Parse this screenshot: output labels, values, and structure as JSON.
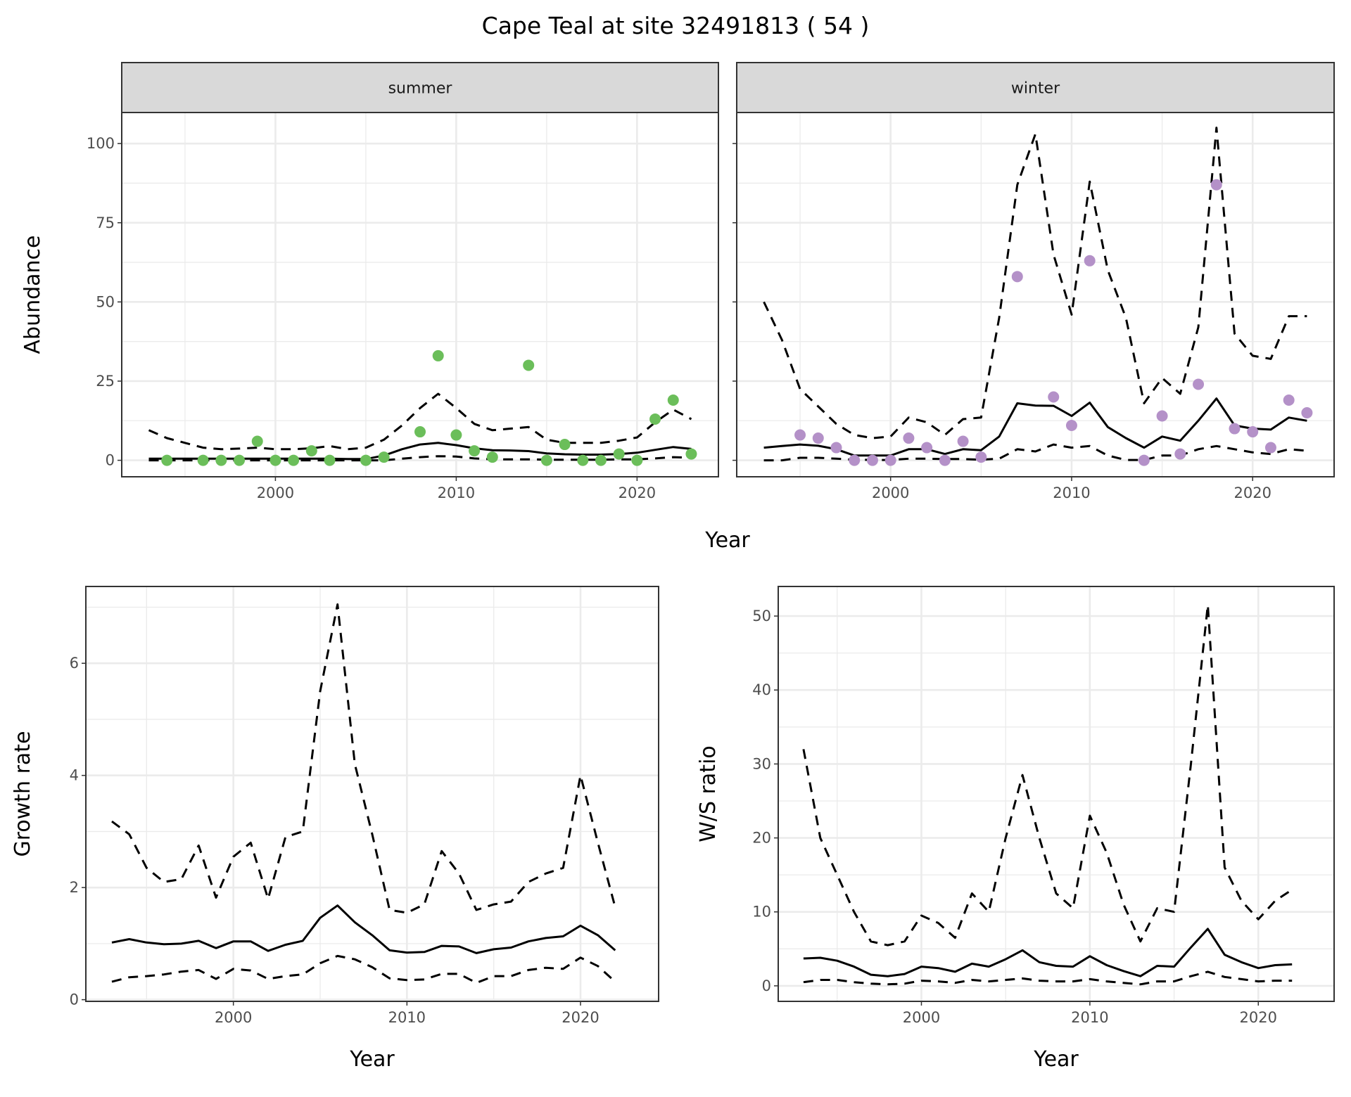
{
  "title": "Cape Teal at site 32491813 ( 54 )",
  "chart_data": [
    {
      "type": "line",
      "facet": "summer",
      "xlabel": "Year",
      "ylabel": "Abundance",
      "xlim": [
        1991.5,
        2024.5
      ],
      "ylim": [
        -5.2,
        109.8
      ],
      "x_ticks": [
        2000,
        2010,
        2020
      ],
      "y_ticks": [
        0,
        25,
        50,
        75,
        100
      ],
      "grid": true,
      "point_color": "#6BBE5A",
      "x": [
        1993,
        1994,
        1995,
        1996,
        1997,
        1998,
        1999,
        2000,
        2001,
        2002,
        2003,
        2004,
        2005,
        2006,
        2007,
        2008,
        2009,
        2010,
        2011,
        2012,
        2013,
        2014,
        2015,
        2016,
        2017,
        2018,
        2019,
        2020,
        2021,
        2022,
        2023
      ],
      "series": [
        {
          "style": "solid",
          "values": [
            0.5,
            0.5,
            0.5,
            0.5,
            0.5,
            0.5,
            0.5,
            0.5,
            0.5,
            0.5,
            0.5,
            0.4,
            0.4,
            1.5,
            3.5,
            5,
            5.5,
            4.8,
            3.8,
            3.2,
            3.1,
            2.9,
            2.2,
            1.9,
            1.8,
            1.8,
            2,
            2.4,
            3.3,
            4.2,
            3.6
          ]
        },
        {
          "style": "dashed",
          "values": [
            9.5,
            7,
            5.5,
            4,
            3.5,
            3.7,
            4,
            3.5,
            3.5,
            3.8,
            4.5,
            3.5,
            4,
            6.5,
            11,
            16.5,
            21,
            16.5,
            11.5,
            9.5,
            10,
            10.5,
            6.5,
            5.5,
            5.5,
            5.5,
            6.2,
            7.2,
            12,
            16,
            13
          ]
        },
        {
          "style": "dashed",
          "values": [
            0,
            0,
            0,
            0,
            0,
            0,
            0,
            0,
            0,
            0,
            0,
            0,
            0,
            0,
            0.5,
            1,
            1.3,
            1.2,
            0.6,
            0.3,
            0.3,
            0.3,
            0.2,
            0.2,
            0.2,
            0.2,
            0.3,
            0.3,
            0.6,
            1,
            0.8
          ]
        }
      ],
      "points": {
        "x": [
          1994,
          1996,
          1997,
          1998,
          1999,
          2000,
          2001,
          2002,
          2003,
          2005,
          2006,
          2008,
          2009,
          2010,
          2011,
          2012,
          2014,
          2015,
          2016,
          2017,
          2018,
          2019,
          2020,
          2021,
          2022,
          2023
        ],
        "y": [
          0,
          0,
          0,
          0,
          6,
          0,
          0,
          3,
          0,
          0,
          1,
          9,
          33,
          8,
          3,
          1,
          30,
          0,
          5,
          0,
          0,
          2,
          0,
          13,
          19,
          2
        ]
      }
    },
    {
      "type": "line",
      "facet": "winter",
      "xlabel": "Year",
      "ylabel": "Abundance",
      "xlim": [
        1991.5,
        2024.5
      ],
      "ylim": [
        -5.2,
        109.8
      ],
      "x_ticks": [
        2000,
        2010,
        2020
      ],
      "y_ticks": [
        0,
        25,
        50,
        75,
        100
      ],
      "grid": true,
      "point_color": "#B491C8",
      "x": [
        1993,
        1994,
        1995,
        1996,
        1997,
        1998,
        1999,
        2000,
        2001,
        2002,
        2003,
        2004,
        2005,
        2006,
        2007,
        2008,
        2009,
        2010,
        2011,
        2012,
        2013,
        2014,
        2015,
        2016,
        2017,
        2018,
        2019,
        2020,
        2021,
        2022,
        2023
      ],
      "series": [
        {
          "style": "solid",
          "values": [
            4,
            4.5,
            5,
            4.6,
            3.5,
            1.5,
            1.5,
            1.5,
            3.5,
            3.5,
            2,
            3.5,
            3.2,
            7.5,
            18,
            17.3,
            17.2,
            14,
            18.2,
            10.5,
            7,
            4,
            7.5,
            6.2,
            12.5,
            19.5,
            11,
            10,
            9.7,
            13.5,
            12.5
          ]
        },
        {
          "style": "dashed",
          "values": [
            50,
            38,
            22.5,
            17,
            11.5,
            8,
            7,
            7.5,
            13.5,
            12,
            8,
            13,
            13.5,
            45,
            87,
            103,
            65,
            46,
            88,
            60,
            45,
            18,
            26,
            21,
            42,
            105,
            40,
            33,
            32,
            45.5,
            45.5
          ]
        },
        {
          "style": "dashed",
          "values": [
            0,
            0,
            0.8,
            0.8,
            0.5,
            0.2,
            0.1,
            0.1,
            0.5,
            0.5,
            0.4,
            0.4,
            0.2,
            0.5,
            3.5,
            2.8,
            5,
            4,
            4.5,
            1.5,
            0.1,
            0.1,
            1.5,
            1.5,
            3.5,
            4.5,
            3.5,
            2.5,
            2,
            3.5,
            3
          ]
        }
      ],
      "points": {
        "x": [
          1995,
          1996,
          1997,
          1998,
          1999,
          2000,
          2001,
          2002,
          2003,
          2004,
          2005,
          2007,
          2009,
          2010,
          2011,
          2014,
          2015,
          2016,
          2017,
          2018,
          2019,
          2020,
          2021,
          2022,
          2023
        ],
        "y": [
          8,
          7,
          4,
          0,
          0,
          0,
          7,
          4,
          0,
          6,
          1,
          58,
          20,
          11,
          63,
          0,
          14,
          2,
          24,
          87,
          10,
          9,
          4,
          19,
          15
        ]
      }
    },
    {
      "type": "line",
      "xlabel": "Year",
      "ylabel": "Growth rate",
      "xlim": [
        1991.5,
        2024.5
      ],
      "ylim": [
        -0.03,
        7.37
      ],
      "x_ticks": [
        2000,
        2010,
        2020
      ],
      "y_ticks": [
        0,
        2,
        4,
        6
      ],
      "grid": true,
      "x": [
        1993,
        1994,
        1995,
        1996,
        1997,
        1998,
        1999,
        2000,
        2001,
        2002,
        2003,
        2004,
        2005,
        2006,
        2007,
        2008,
        2009,
        2010,
        2011,
        2012,
        2013,
        2014,
        2015,
        2016,
        2017,
        2018,
        2019,
        2020,
        2021,
        2022
      ],
      "series": [
        {
          "style": "solid",
          "values": [
            1.02,
            1.08,
            1.02,
            0.99,
            1.0,
            1.05,
            0.92,
            1.04,
            1.04,
            0.87,
            0.98,
            1.05,
            1.46,
            1.68,
            1.38,
            1.15,
            0.88,
            0.84,
            0.85,
            0.96,
            0.95,
            0.83,
            0.9,
            0.93,
            1.04,
            1.1,
            1.13,
            1.32,
            1.15,
            0.88
          ]
        },
        {
          "style": "dashed",
          "values": [
            3.18,
            2.95,
            2.35,
            2.1,
            2.15,
            2.75,
            1.82,
            2.55,
            2.8,
            1.8,
            2.9,
            3.0,
            5.5,
            7.05,
            4.2,
            2.95,
            1.6,
            1.55,
            1.7,
            2.65,
            2.25,
            1.6,
            1.7,
            1.75,
            2.1,
            2.25,
            2.35,
            4.0,
            2.8,
            1.65
          ]
        },
        {
          "style": "dashed",
          "values": [
            0.32,
            0.4,
            0.42,
            0.45,
            0.5,
            0.53,
            0.37,
            0.55,
            0.52,
            0.37,
            0.42,
            0.45,
            0.65,
            0.78,
            0.72,
            0.58,
            0.38,
            0.35,
            0.36,
            0.46,
            0.46,
            0.3,
            0.42,
            0.42,
            0.53,
            0.57,
            0.55,
            0.75,
            0.6,
            0.32
          ]
        }
      ]
    },
    {
      "type": "line",
      "xlabel": "Year",
      "ylabel": "W/S ratio",
      "xlim": [
        1991.5,
        2024.5
      ],
      "ylim": [
        -2.1,
        54
      ],
      "x_ticks": [
        2000,
        2010,
        2020
      ],
      "y_ticks": [
        0,
        10,
        20,
        30,
        40,
        50
      ],
      "grid": true,
      "x": [
        1993,
        1994,
        1995,
        1996,
        1997,
        1998,
        1999,
        2000,
        2001,
        2002,
        2003,
        2004,
        2005,
        2006,
        2007,
        2008,
        2009,
        2010,
        2011,
        2012,
        2013,
        2014,
        2015,
        2016,
        2017,
        2018,
        2019,
        2020,
        2021,
        2022
      ],
      "series": [
        {
          "style": "solid",
          "values": [
            3.7,
            3.8,
            3.4,
            2.6,
            1.5,
            1.3,
            1.6,
            2.6,
            2.4,
            1.9,
            3.0,
            2.6,
            3.6,
            4.8,
            3.2,
            2.7,
            2.6,
            4.0,
            2.8,
            2.0,
            1.3,
            2.7,
            2.6,
            5.2,
            7.7,
            4.2,
            3.2,
            2.4,
            2.8,
            2.9
          ]
        },
        {
          "style": "dashed",
          "values": [
            32,
            20,
            15,
            10,
            6,
            5.5,
            6,
            9.5,
            8.5,
            6.5,
            12.5,
            10,
            20,
            28.5,
            20,
            12.5,
            10.5,
            23,
            18,
            11,
            6,
            10.5,
            10,
            30,
            51.5,
            16,
            11.5,
            9,
            11.5,
            13
          ]
        },
        {
          "style": "dashed",
          "values": [
            0.5,
            0.8,
            0.8,
            0.5,
            0.3,
            0.2,
            0.3,
            0.7,
            0.6,
            0.4,
            0.8,
            0.6,
            0.8,
            1.0,
            0.7,
            0.6,
            0.6,
            0.9,
            0.6,
            0.4,
            0.2,
            0.6,
            0.6,
            1.3,
            1.9,
            1.2,
            0.9,
            0.6,
            0.7,
            0.7
          ]
        }
      ]
    }
  ]
}
